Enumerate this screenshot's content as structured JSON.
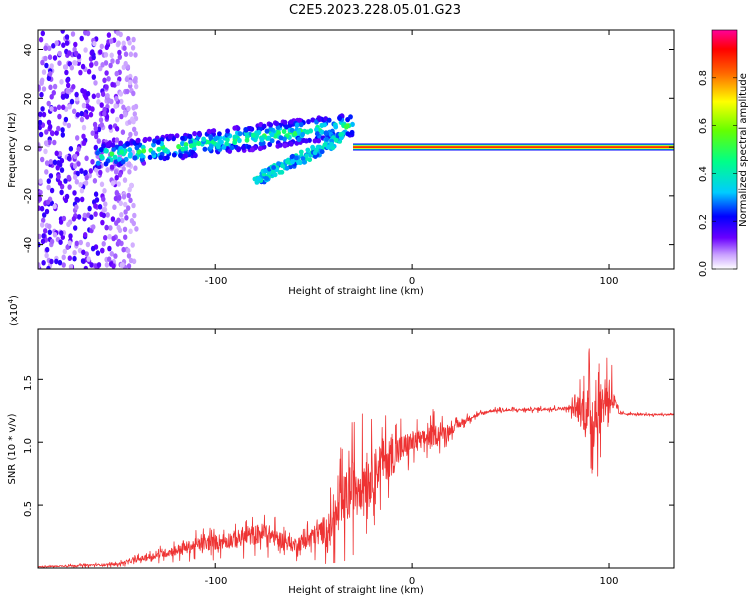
{
  "title": "C2E5.2023.228.05.01.G23",
  "colors": {
    "snr_line": "#ee3333",
    "background": "#ffffff",
    "axis": "#000000"
  },
  "chart_data": [
    {
      "type": "heatmap",
      "xlabel": "Height of straight line (km)",
      "ylabel": "Frequency (Hz)",
      "xlim": [
        -190,
        133
      ],
      "ylim": [
        -50,
        48
      ],
      "x_ticks": [
        -100,
        0,
        100
      ],
      "x_tick_labels": [
        "-100",
        "0",
        "100"
      ],
      "y_ticks": [
        -40,
        -20,
        0,
        20,
        40
      ],
      "y_tick_labels": [
        "-40",
        "-20",
        "0",
        "20",
        "40"
      ],
      "colormap": "rainbow (purple → blue → cyan → green → yellow → red → magenta)",
      "colorbar": {
        "label": "Normalized spectral amplitude",
        "range": [
          0,
          1
        ],
        "ticks": [
          0.0,
          0.2,
          0.4,
          0.6,
          0.8
        ],
        "tick_labels": [
          "0.0",
          "0.2",
          "0.4",
          "0.6",
          "0.8"
        ]
      },
      "features": [
        {
          "name": "noise",
          "x_range": [
            -190,
            -140
          ],
          "freq_range": [
            -50,
            48
          ],
          "amplitude": 0.15
        },
        {
          "name": "drifting_band",
          "x_start": -160,
          "x_end": -30,
          "freq_start": -4,
          "freq_end": 9,
          "amplitude": 0.4
        },
        {
          "name": "secondary_band",
          "x_start": -80,
          "x_end": -35,
          "freq_start": -14,
          "freq_end": 4,
          "amplitude": 0.3
        },
        {
          "name": "steady_line",
          "x_range": [
            -30,
            133
          ],
          "freq": 0,
          "amplitude": 0.9
        }
      ]
    },
    {
      "type": "line",
      "xlabel": "Height of straight line (km)",
      "ylabel": "SNR (10 * v/v)",
      "y_multiplier_label": "(x10",
      "y_multiplier_exp": "4",
      "y_multiplier_close": ")",
      "xlim": [
        -190,
        133
      ],
      "ylim": [
        0,
        19000
      ],
      "x_ticks": [
        -100,
        0,
        100
      ],
      "x_tick_labels": [
        "-100",
        "0",
        "100"
      ],
      "y_ticks": [
        5000,
        10000,
        15000
      ],
      "y_tick_labels": [
        "0.5",
        "1.0",
        "1.5"
      ],
      "series": [
        {
          "x": [
            -190,
            -150,
            -130,
            -110,
            -90,
            -75,
            -60,
            -50,
            -40,
            -35,
            -30,
            -25,
            -20,
            -15,
            -10,
            -5,
            0,
            5,
            10,
            20,
            30,
            40,
            60,
            80,
            88,
            92,
            96,
            100,
            105,
            115,
            125,
            133
          ],
          "y": [
            100,
            300,
            1000,
            1800,
            2300,
            2800,
            1800,
            2500,
            3500,
            5000,
            6500,
            7000,
            7500,
            8500,
            9000,
            9500,
            10000,
            10200,
            10500,
            11000,
            12000,
            12500,
            12600,
            12700,
            12500,
            12000,
            12800,
            14000,
            12300,
            12200,
            12200,
            12200
          ],
          "noise_spread": [
            80,
            200,
            600,
            1200,
            1500,
            1800,
            1200,
            1800,
            3000,
            5000,
            5000,
            5000,
            4000,
            4000,
            3500,
            2500,
            2000,
            1500,
            2000,
            800,
            400,
            250,
            250,
            300,
            4000,
            6000,
            4000,
            4000,
            200,
            150,
            150,
            150
          ]
        }
      ]
    }
  ]
}
